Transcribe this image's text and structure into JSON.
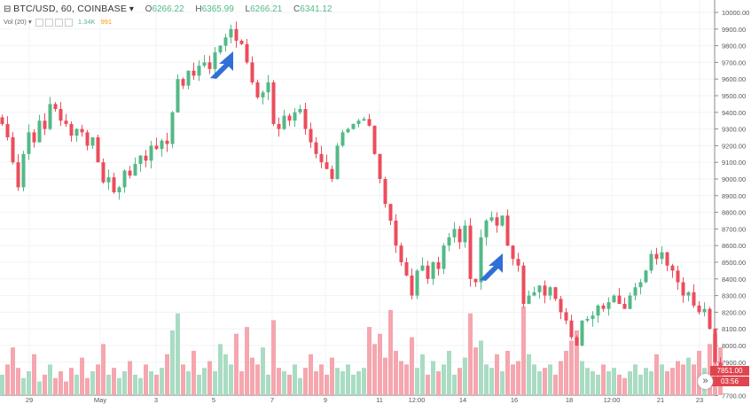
{
  "header": {
    "symbol": "BTC/USD, 60, COINBASE",
    "o_label": "O",
    "o": "6266.22",
    "h_label": "H",
    "h": "6365.99",
    "l_label": "L",
    "l": "6266.21",
    "c_label": "C",
    "c": "6341.12",
    "vol_label": "Vol (20)",
    "vol_value": "1.34K",
    "vol_ma": "991",
    "vol_ma_color": "#ff9800"
  },
  "last_price": "7851.00",
  "countdown": "03:56",
  "colors": {
    "up": "#53b987",
    "down": "#eb4d5c",
    "up_vol": "#a9dcc3",
    "down_vol": "#f5a6ae"
  },
  "chart_data": {
    "type": "candlestick",
    "interval": "60",
    "ylim": [
      7700,
      10000
    ],
    "y_ticks": [
      "10000.00",
      "9900.00",
      "9800.00",
      "9700.00",
      "9600.00",
      "9500.00",
      "9400.00",
      "9300.00",
      "9200.00",
      "9100.00",
      "9000.00",
      "8900.00",
      "8800.00",
      "8700.00",
      "8600.00",
      "8500.00",
      "8400.00",
      "8300.00",
      "8200.00",
      "8100.00",
      "8000.00",
      "7900.00",
      "7700.00"
    ],
    "x_ticks": [
      "29",
      "May",
      "3",
      "5",
      "7",
      "9",
      "11",
      "12:00",
      "14",
      "16",
      "18",
      "12:00",
      "21",
      "23"
    ],
    "grid": true,
    "close": [
      9330,
      9250,
      9100,
      8950,
      9150,
      9280,
      9220,
      9350,
      9300,
      9450,
      9420,
      9350,
      9330,
      9260,
      9300,
      9280,
      9200,
      9250,
      9100,
      8980,
      9010,
      8920,
      8950,
      9050,
      9020,
      9090,
      9140,
      9110,
      9200,
      9180,
      9230,
      9210,
      9400,
      9600,
      9560,
      9650,
      9620,
      9680,
      9700,
      9660,
      9760,
      9800,
      9850,
      9900,
      9830,
      9810,
      9700,
      9580,
      9490,
      9520,
      9580,
      9330,
      9300,
      9380,
      9350,
      9400,
      9420,
      9300,
      9220,
      9150,
      9100,
      9060,
      9000,
      9200,
      9280,
      9300,
      9330,
      9350,
      9360,
      9320,
      9150,
      9000,
      8850,
      8750,
      8600,
      8500,
      8420,
      8300,
      8450,
      8480,
      8400,
      8500,
      8460,
      8600,
      8650,
      8700,
      8620,
      8720,
      8400,
      8380,
      8650,
      8750,
      8770,
      8720,
      8780,
      8600,
      8520,
      8480,
      8250,
      8300,
      8320,
      8360,
      8300,
      8350,
      8280,
      8200,
      8150,
      8050,
      8000,
      8150,
      8160,
      8180,
      8240,
      8220,
      8260,
      8300,
      8250,
      8220,
      8300,
      8350,
      8380,
      8450,
      8550,
      8520,
      8560,
      8480,
      8450,
      8380,
      8300,
      8320,
      8240,
      8200,
      8220,
      8100,
      7900,
      7851
    ],
    "volume": [
      600,
      900,
      1400,
      800,
      500,
      700,
      1200,
      400,
      600,
      900,
      500,
      700,
      400,
      800,
      600,
      1100,
      500,
      700,
      900,
      1500,
      600,
      800,
      500,
      700,
      1000,
      600,
      500,
      900,
      700,
      600,
      800,
      1200,
      1900,
      2400,
      900,
      700,
      1300,
      600,
      800,
      1000,
      700,
      1500,
      1200,
      900,
      1800,
      700,
      2000,
      1100,
      900,
      1400,
      600,
      2200,
      800,
      700,
      600,
      900,
      500,
      800,
      1200,
      700,
      900,
      600,
      1100,
      800,
      700,
      900,
      600,
      700,
      800,
      2000,
      1500,
      1800,
      1100,
      2500,
      1300,
      1000,
      900,
      1700,
      800,
      1200,
      600,
      1000,
      700,
      900,
      1300,
      600,
      800,
      1100,
      2400,
      1400,
      1600,
      900,
      800,
      1200,
      700,
      1300,
      900,
      1000,
      2600,
      1200,
      900,
      700,
      800,
      900,
      600,
      1000,
      1300,
      1600,
      1900,
      1000,
      800,
      700,
      600,
      900,
      700,
      800,
      600,
      500,
      700,
      900,
      600,
      800,
      700,
      1200,
      900,
      700,
      800,
      1000,
      900,
      1100,
      900,
      1300,
      800,
      1500,
      1800,
      1400
    ]
  }
}
